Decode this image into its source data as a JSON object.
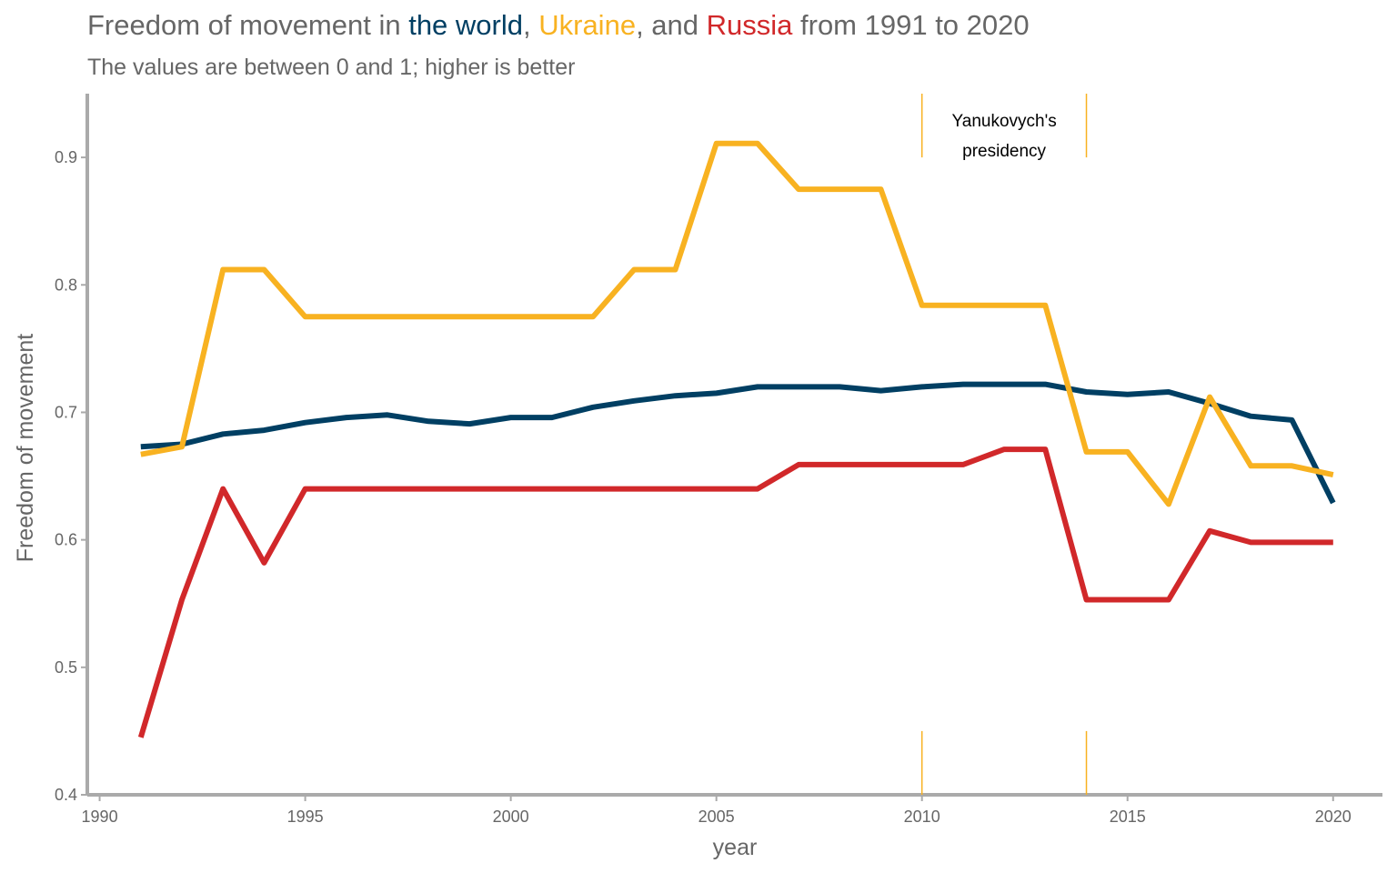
{
  "title": {
    "prefix": "Freedom of movement in ",
    "world": "the world",
    "sep1": ", ",
    "ukraine": "Ukraine",
    "sep2": ", and ",
    "russia": "Russia",
    "suffix": " from 1991 to 2020"
  },
  "subtitle": "The values are between 0 and 1; higher is better",
  "colors": {
    "world": "#003f63",
    "ukraine": "#f8b221",
    "russia": "#d1282a",
    "text": "#666666",
    "axis": "#aaaaaa"
  },
  "chart_data": {
    "type": "line",
    "title": "Freedom of movement in the world, Ukraine, and Russia from 1991 to 2020",
    "subtitle": "The values are between 0 and 1; higher is better",
    "xlabel": "year",
    "ylabel": "Freedom of movement",
    "xlim": [
      1989.7,
      2021.2
    ],
    "ylim": [
      0.4,
      0.95
    ],
    "x_ticks": [
      1990,
      1995,
      2000,
      2005,
      2010,
      2015,
      2020
    ],
    "y_ticks": [
      0.4,
      0.5,
      0.6,
      0.7,
      0.8,
      0.9
    ],
    "grid": false,
    "legend": "none (series named by colored words in title)",
    "x": [
      1991,
      1992,
      1993,
      1994,
      1995,
      1996,
      1997,
      1998,
      1999,
      2000,
      2001,
      2002,
      2003,
      2004,
      2005,
      2006,
      2007,
      2008,
      2009,
      2010,
      2011,
      2012,
      2013,
      2014,
      2015,
      2016,
      2017,
      2018,
      2019,
      2020
    ],
    "series": [
      {
        "name": "the world",
        "key": "world",
        "values": [
          0.673,
          0.675,
          0.683,
          0.686,
          0.692,
          0.696,
          0.698,
          0.693,
          0.691,
          0.696,
          0.696,
          0.704,
          0.709,
          0.713,
          0.715,
          0.72,
          0.72,
          0.72,
          0.717,
          0.72,
          0.722,
          0.722,
          0.722,
          0.716,
          0.714,
          0.716,
          0.707,
          0.697,
          0.694,
          0.629
        ]
      },
      {
        "name": "Ukraine",
        "key": "ukraine",
        "values": [
          0.667,
          0.673,
          0.812,
          0.812,
          0.775,
          0.775,
          0.775,
          0.775,
          0.775,
          0.775,
          0.775,
          0.775,
          0.812,
          0.812,
          0.911,
          0.911,
          0.875,
          0.875,
          0.875,
          0.784,
          0.784,
          0.784,
          0.784,
          0.669,
          0.669,
          0.628,
          0.712,
          0.658,
          0.658,
          0.651
        ]
      },
      {
        "name": "Russia",
        "key": "russia",
        "values": [
          0.445,
          0.553,
          0.64,
          0.582,
          0.64,
          0.64,
          0.64,
          0.64,
          0.64,
          0.64,
          0.64,
          0.64,
          0.64,
          0.64,
          0.64,
          0.64,
          0.659,
          0.659,
          0.659,
          0.659,
          0.659,
          0.671,
          0.671,
          0.553,
          0.553,
          0.553,
          0.607,
          0.598,
          0.598,
          0.598
        ]
      }
    ],
    "annotations": [
      {
        "label": "Yanukovych's\npresidency",
        "label_lines": [
          "Yanukovych's",
          "presidency"
        ],
        "x_start": 2010,
        "x_end": 2014
      }
    ]
  }
}
